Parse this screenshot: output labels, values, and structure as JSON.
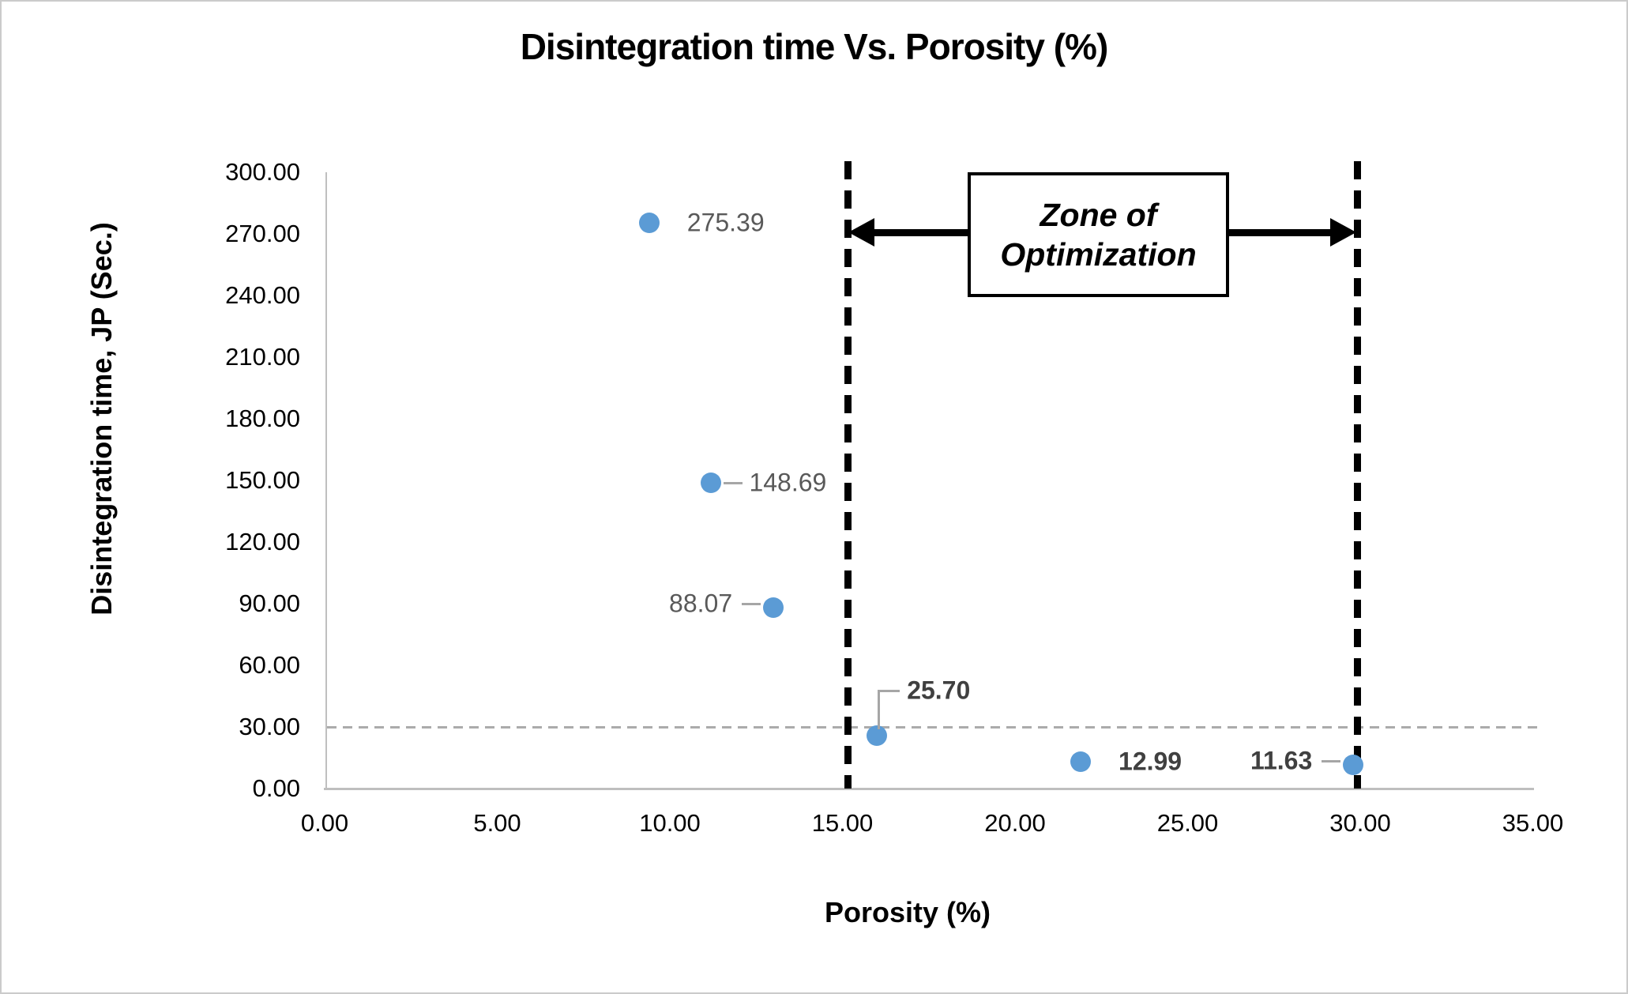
{
  "chart_data": {
    "type": "scatter",
    "title": "Disintegration time Vs. Porosity (%)",
    "xlabel": "Porosity (%)",
    "ylabel": "Disintegration time, JP (Sec.)",
    "xlim": [
      0,
      35
    ],
    "ylim": [
      0,
      300
    ],
    "x_ticks": [
      "0.00",
      "5.00",
      "10.00",
      "15.00",
      "20.00",
      "25.00",
      "30.00",
      "35.00"
    ],
    "y_ticks": [
      "0.00",
      "30.00",
      "60.00",
      "90.00",
      "120.00",
      "150.00",
      "180.00",
      "210.00",
      "240.00",
      "270.00",
      "300.00"
    ],
    "grid": "off",
    "legend": "none",
    "points": [
      {
        "x": 9.4,
        "y": 275.39,
        "label": "275.39",
        "label_side": "right",
        "bold": false,
        "leader": false
      },
      {
        "x": 11.2,
        "y": 148.69,
        "label": "148.69",
        "label_side": "right",
        "bold": false,
        "leader": true
      },
      {
        "x": 13.0,
        "y": 88.07,
        "label": "88.07",
        "label_side": "left",
        "bold": false,
        "leader": true
      },
      {
        "x": 16.0,
        "y": 25.7,
        "label": "25.70",
        "label_side": "elbow",
        "bold": true,
        "leader": true
      },
      {
        "x": 21.9,
        "y": 12.99,
        "label": "12.99",
        "label_side": "right",
        "bold": true,
        "leader": false
      },
      {
        "x": 29.8,
        "y": 11.63,
        "label": "11.63",
        "label_side": "left",
        "bold": true,
        "leader": true
      }
    ],
    "reference_lines": {
      "horizontal": {
        "y": 30,
        "style": "dashed",
        "color": "#ababab"
      },
      "vertical": [
        {
          "x": 15.15,
          "style": "dashed",
          "color": "#000000"
        },
        {
          "x": 29.9,
          "style": "dashed",
          "color": "#000000"
        }
      ]
    },
    "annotation": {
      "line1": "Zone of",
      "line2": "Optimization"
    },
    "colors": {
      "marker": "#5b9bd5",
      "label_regular": "#595959",
      "label_bold": "#404040",
      "axis_line": "#bfbfbf",
      "horizontal_dash": "#ababab",
      "zone_boundary": "#000000",
      "background": "#ffffff",
      "frame_border": "#cbcbcb"
    }
  }
}
